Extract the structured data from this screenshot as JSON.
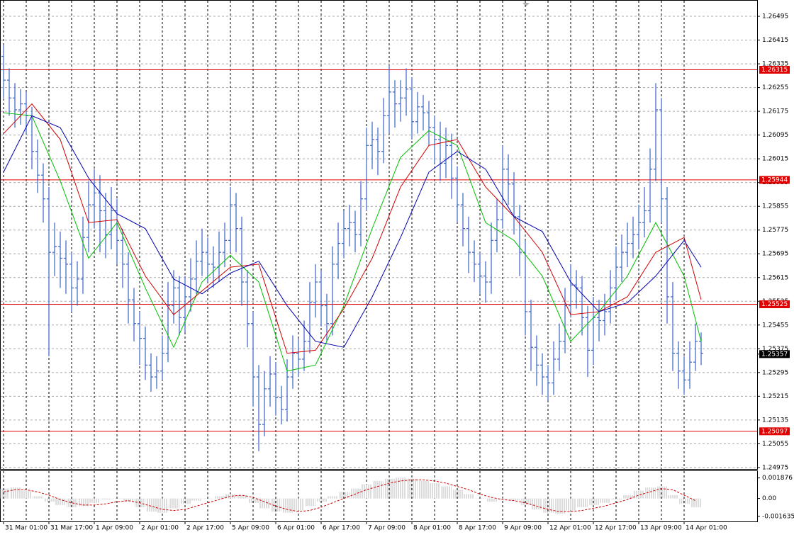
{
  "chart_data": [
    {
      "type": "ohlc",
      "categories": [
        "31 Mar 01:00",
        null,
        null,
        null,
        null,
        null,
        null,
        null,
        "31 Mar 17:00",
        null,
        null,
        null,
        null,
        null,
        null,
        null,
        "1 Apr 09:00",
        null,
        null,
        null,
        null,
        null,
        null,
        null,
        "2 Apr 01:00",
        null,
        null,
        null,
        null,
        null,
        null,
        null,
        "2 Apr 17:00",
        null,
        null,
        null,
        null,
        null,
        null,
        null,
        "5 Apr 09:00",
        null,
        null,
        null,
        null,
        null,
        null,
        null,
        "6 Apr 01:00",
        null,
        null,
        null,
        null,
        null,
        null,
        null,
        "6 Apr 17:00",
        null,
        null,
        null,
        null,
        null,
        null,
        null,
        "7 Apr 09:00",
        null,
        null,
        null,
        null,
        null,
        null,
        null,
        "8 Apr 01:00",
        null,
        null,
        null,
        null,
        null,
        null,
        null,
        "8 Apr 17:00",
        null,
        null,
        null,
        null,
        null,
        null,
        null,
        "9 Apr 09:00",
        null,
        null,
        null,
        null,
        null,
        null,
        null,
        "12 Apr 01:00",
        null,
        null,
        null,
        null,
        null,
        null,
        null,
        "12 Apr 17:00",
        null,
        null,
        null,
        null,
        null,
        null,
        null,
        "13 Apr 09:00",
        null,
        null,
        null,
        null,
        null,
        null,
        null,
        "14 Apr 01:00",
        null,
        null,
        null
      ],
      "open": [
        1.2636,
        1.2628,
        1.2622,
        1.2618,
        1.262,
        1.2616,
        1.2604,
        1.2596,
        1.2588,
        1.257,
        1.2572,
        1.2568,
        1.2566,
        1.2558,
        1.2561,
        1.2575,
        1.2586,
        1.259,
        1.2584,
        1.2576,
        1.2584,
        1.2574,
        1.2566,
        1.2554,
        1.2546,
        1.2541,
        1.2532,
        1.2528,
        1.253,
        1.2536,
        1.2552,
        1.2558,
        1.2548,
        1.2555,
        1.2561,
        1.2567,
        1.257,
        1.2566,
        1.2565,
        1.257,
        1.2574,
        1.2586,
        1.2578,
        1.256,
        1.2546,
        1.2528,
        1.2512,
        1.2524,
        1.2529,
        1.2521,
        1.2517,
        1.2528,
        1.2536,
        1.2534,
        1.254,
        1.2553,
        1.256,
        1.2552,
        1.2546,
        1.2566,
        1.2573,
        1.2578,
        1.258,
        1.2576,
        1.2588,
        1.2606,
        1.2608,
        1.2604,
        1.2616,
        1.2624,
        1.262,
        1.2622,
        1.2625,
        1.2614,
        1.2619,
        1.2617,
        1.2612,
        1.2608,
        1.26,
        1.2606,
        1.2595,
        1.2586,
        1.2578,
        1.257,
        1.2566,
        1.2562,
        1.256,
        1.2574,
        1.2581,
        1.2598,
        1.2593,
        1.2582,
        1.257,
        1.255,
        1.2538,
        1.2532,
        1.2528,
        1.2526,
        1.2534,
        1.254,
        1.2552,
        1.2559,
        1.2558,
        1.2548,
        1.2537,
        1.2548,
        1.2547,
        1.255,
        1.2558,
        1.2565,
        1.257,
        1.2573,
        1.2576,
        1.258,
        1.2584,
        1.2598,
        1.2618,
        1.2588,
        1.2555,
        1.2536,
        1.253,
        1.2527,
        1.2533,
        1.254
      ],
      "high": [
        1.264,
        1.2632,
        1.2627,
        1.2625,
        1.2624,
        1.2619,
        1.2608,
        1.26,
        1.2592,
        1.258,
        1.2577,
        1.2574,
        1.257,
        1.2567,
        1.2582,
        1.2594,
        1.2598,
        1.2596,
        1.259,
        1.2592,
        1.2588,
        1.2578,
        1.257,
        1.2558,
        1.255,
        1.2545,
        1.2536,
        1.2535,
        1.2542,
        1.256,
        1.2564,
        1.2562,
        1.2562,
        1.2568,
        1.2574,
        1.2578,
        1.2575,
        1.2572,
        1.2577,
        1.258,
        1.2592,
        1.259,
        1.2582,
        1.2564,
        1.255,
        1.2532,
        1.253,
        1.2535,
        1.2533,
        1.2525,
        1.2534,
        1.2542,
        1.2541,
        1.2547,
        1.256,
        1.2566,
        1.2564,
        1.2556,
        1.2572,
        1.258,
        1.2584,
        1.2586,
        1.2584,
        1.2594,
        1.2612,
        1.2614,
        1.2612,
        1.2622,
        1.2633,
        1.2628,
        1.2628,
        1.2632,
        1.2629,
        1.2624,
        1.2623,
        1.2621,
        1.2616,
        1.2614,
        1.2612,
        1.261,
        1.2599,
        1.259,
        1.2582,
        1.2574,
        1.257,
        1.2567,
        1.258,
        1.2588,
        1.2606,
        1.2603,
        1.2597,
        1.2586,
        1.2574,
        1.2554,
        1.2542,
        1.2536,
        1.2532,
        1.254,
        1.2546,
        1.2558,
        1.2566,
        1.2564,
        1.2562,
        1.2552,
        1.2555,
        1.2554,
        1.2556,
        1.2564,
        1.2572,
        1.2576,
        1.258,
        1.2582,
        1.2586,
        1.2592,
        1.2605,
        1.2627,
        1.2622,
        1.2592,
        1.256,
        1.254,
        1.2535,
        1.254,
        1.2546,
        1.2543
      ],
      "low": [
        1.2622,
        1.2616,
        1.2612,
        1.2613,
        1.261,
        1.2598,
        1.259,
        1.258,
        1.2535,
        1.2562,
        1.2558,
        1.2556,
        1.255,
        1.2552,
        1.2556,
        1.257,
        1.2578,
        1.257,
        1.2568,
        1.2571,
        1.2566,
        1.2558,
        1.2546,
        1.254,
        1.2532,
        1.2527,
        1.2523,
        1.2524,
        1.2527,
        1.2533,
        1.2546,
        1.2542,
        1.2543,
        1.255,
        1.2556,
        1.2562,
        1.256,
        1.2558,
        1.256,
        1.2565,
        1.257,
        1.257,
        1.2552,
        1.2538,
        1.2518,
        1.2503,
        1.2508,
        1.2518,
        1.2515,
        1.2512,
        1.2513,
        1.2524,
        1.2528,
        1.253,
        1.2536,
        1.2548,
        1.2545,
        1.254,
        1.2542,
        1.2561,
        1.2568,
        1.2572,
        1.257,
        1.2572,
        1.2584,
        1.2598,
        1.2596,
        1.26,
        1.261,
        1.2612,
        1.2614,
        1.2616,
        1.2608,
        1.261,
        1.2611,
        1.2606,
        1.26,
        1.2594,
        1.2595,
        1.2588,
        1.258,
        1.2572,
        1.2563,
        1.256,
        1.2556,
        1.2553,
        1.2556,
        1.257,
        1.2578,
        1.2586,
        1.2576,
        1.2562,
        1.2542,
        1.253,
        1.2525,
        1.2522,
        1.252,
        1.2522,
        1.253,
        1.2536,
        1.2548,
        1.2551,
        1.2542,
        1.2528,
        1.2532,
        1.254,
        1.2542,
        1.2546,
        1.2554,
        1.256,
        1.2565,
        1.2568,
        1.2571,
        1.2575,
        1.258,
        1.2594,
        1.258,
        1.2546,
        1.253,
        1.2524,
        1.2522,
        1.2524,
        1.253,
        1.2532
      ],
      "close": [
        1.2628,
        1.2622,
        1.2618,
        1.262,
        1.2616,
        1.2604,
        1.2596,
        1.2588,
        1.257,
        1.2572,
        1.2568,
        1.2566,
        1.2558,
        1.2561,
        1.2575,
        1.2586,
        1.259,
        1.2584,
        1.2576,
        1.2584,
        1.2574,
        1.2566,
        1.2554,
        1.2546,
        1.2541,
        1.2532,
        1.2528,
        1.253,
        1.2536,
        1.2552,
        1.2558,
        1.2548,
        1.2555,
        1.2561,
        1.2567,
        1.257,
        1.2566,
        1.2565,
        1.257,
        1.2574,
        1.2586,
        1.2578,
        1.256,
        1.2546,
        1.2528,
        1.2512,
        1.2524,
        1.2529,
        1.2521,
        1.2517,
        1.2528,
        1.2536,
        1.2534,
        1.254,
        1.2553,
        1.256,
        1.2552,
        1.2546,
        1.2566,
        1.2573,
        1.2578,
        1.258,
        1.2576,
        1.2588,
        1.2606,
        1.2608,
        1.2604,
        1.2616,
        1.2624,
        1.262,
        1.2622,
        1.2625,
        1.2614,
        1.2619,
        1.2617,
        1.2612,
        1.2608,
        1.26,
        1.2606,
        1.2595,
        1.2586,
        1.2578,
        1.257,
        1.2566,
        1.2562,
        1.256,
        1.2574,
        1.2581,
        1.2598,
        1.2593,
        1.2582,
        1.257,
        1.255,
        1.2538,
        1.2532,
        1.2528,
        1.2526,
        1.2534,
        1.254,
        1.2552,
        1.2559,
        1.2558,
        1.2548,
        1.2537,
        1.2548,
        1.2547,
        1.255,
        1.2558,
        1.2565,
        1.257,
        1.2573,
        1.2576,
        1.258,
        1.2584,
        1.2598,
        1.2618,
        1.2588,
        1.2555,
        1.2536,
        1.253,
        1.2527,
        1.2533,
        1.254,
        1.2536
      ],
      "color": "#3a62c8",
      "lines": [
        {
          "color": "#00c000",
          "x": [
            0,
            5,
            10,
            15,
            20,
            25,
            30,
            35,
            40,
            45,
            50,
            55,
            60,
            65,
            70,
            75,
            80,
            85,
            90,
            95,
            100,
            105,
            110,
            115,
            120,
            123
          ],
          "values": [
            1.2617,
            1.2616,
            1.2594,
            1.2568,
            1.258,
            1.2558,
            1.2538,
            1.256,
            1.2569,
            1.256,
            1.253,
            1.2532,
            1.2552,
            1.2578,
            1.2602,
            1.2611,
            1.2606,
            1.258,
            1.2574,
            1.2562,
            1.254,
            1.255,
            1.2562,
            1.258,
            1.2562,
            1.254
          ]
        },
        {
          "color": "#d00000",
          "x": [
            0,
            5,
            10,
            15,
            20,
            25,
            30,
            35,
            40,
            45,
            50,
            55,
            60,
            65,
            70,
            75,
            80,
            85,
            90,
            95,
            100,
            105,
            110,
            115,
            120,
            123
          ],
          "values": [
            1.261,
            1.262,
            1.2608,
            1.258,
            1.2581,
            1.2562,
            1.2549,
            1.2557,
            1.2565,
            1.2566,
            1.2536,
            1.2537,
            1.2551,
            1.2568,
            1.2592,
            1.2606,
            1.2608,
            1.2592,
            1.2582,
            1.257,
            1.2549,
            1.255,
            1.2555,
            1.257,
            1.2575,
            1.2554
          ]
        },
        {
          "color": "#0000b0",
          "x": [
            0,
            5,
            10,
            15,
            20,
            25,
            30,
            35,
            40,
            45,
            50,
            55,
            60,
            65,
            70,
            75,
            80,
            85,
            90,
            95,
            100,
            105,
            110,
            115,
            120,
            123
          ],
          "values": [
            1.2597,
            1.2616,
            1.2612,
            1.2595,
            1.2583,
            1.2578,
            1.2561,
            1.2556,
            1.2563,
            1.2567,
            1.2552,
            1.254,
            1.2538,
            1.2555,
            1.2575,
            1.2597,
            1.2604,
            1.2598,
            1.2582,
            1.2577,
            1.256,
            1.255,
            1.2553,
            1.2562,
            1.2574,
            1.2565
          ]
        }
      ],
      "ylim": [
        1.2497,
        1.2655
      ],
      "yticks": [
        1.24975,
        1.25055,
        1.25135,
        1.25215,
        1.25295,
        1.25375,
        1.25455,
        1.25535,
        1.25615,
        1.25695,
        1.25775,
        1.25855,
        1.25935,
        1.26015,
        1.26095,
        1.26175,
        1.26255,
        1.26335,
        1.26415,
        1.26495
      ],
      "grid": true,
      "levels": [
        1.26315,
        1.25944,
        1.25525,
        1.25097
      ],
      "level_color": "#e00000",
      "last_price": 1.25357
    },
    {
      "type": "oscillator",
      "x": [
        0,
        2,
        4,
        6,
        8,
        10,
        12,
        14,
        16,
        18,
        20,
        22,
        24,
        26,
        28,
        30,
        32,
        34,
        36,
        38,
        40,
        42,
        44,
        46,
        48,
        50,
        52,
        54,
        56,
        58,
        60,
        62,
        64,
        66,
        68,
        70,
        72,
        74,
        76,
        78,
        80,
        82,
        84,
        86,
        88,
        90,
        92,
        94,
        96,
        98,
        100,
        102,
        104,
        106,
        108,
        110,
        112,
        114,
        116,
        118,
        120,
        122
      ],
      "series": [
        {
          "color": "#b8b8b8",
          "values": [
            0.0009,
            0.001,
            0.0007,
            0.0002,
            -0.0003,
            -0.0006,
            -0.0008,
            -0.0007,
            -0.0004,
            -0.0001,
            0,
            -0.0003,
            -0.0008,
            -0.0012,
            -0.0013,
            -0.0009,
            -0.0005,
            -0.0002,
            0,
            0.0002,
            0.0004,
            0.0003,
            -0.0004,
            -0.0009,
            -0.0012,
            -0.0013,
            -0.0011,
            -0.0007,
            -0.0003,
            0.0002,
            0.0006,
            0.0009,
            0.0013,
            0.0016,
            0.0018,
            0.0019,
            0.0018,
            0.0016,
            0.0014,
            0.0011,
            0.0008,
            0.0004,
            0,
            -0.0003,
            -0.0001,
            -0.0002,
            -0.0006,
            -0.001,
            -0.0013,
            -0.0014,
            -0.0011,
            -0.0008,
            -0.0006,
            -0.0004,
            -0.0001,
            0.0003,
            0.0007,
            0.001,
            0.0011,
            0.0003,
            -0.0005,
            -0.0008
          ]
        },
        {
          "color": "#d00000",
          "style": "dashed",
          "values": [
            0.0006,
            0.0008,
            0.0008,
            0.0006,
            0.0003,
            -0.0001,
            -0.0004,
            -0.0006,
            -0.0006,
            -0.0005,
            -0.0003,
            -0.0002,
            -0.0004,
            -0.0007,
            -0.001,
            -0.0011,
            -0.001,
            -0.0007,
            -0.0004,
            -0.0001,
            0.0002,
            0.0003,
            0.0001,
            -0.0003,
            -0.0007,
            -0.001,
            -0.0012,
            -0.0011,
            -0.0008,
            -0.0004,
            0,
            0.0004,
            0.0008,
            0.0011,
            0.0014,
            0.0016,
            0.0017,
            0.0017,
            0.0016,
            0.0014,
            0.0011,
            0.0008,
            0.0004,
            0.0001,
            -0.0001,
            -0.0002,
            -0.0004,
            -0.0007,
            -0.001,
            -0.0012,
            -0.0012,
            -0.0011,
            -0.0009,
            -0.0007,
            -0.0004,
            -0.0001,
            0.0003,
            0.0006,
            0.0009,
            0.0008,
            0.0003,
            -0.0002
          ]
        }
      ],
      "ylim": [
        -0.0021,
        0.0025
      ],
      "yticks": [
        0.001876,
        {
          "value": 0,
          "label": "0.00"
        },
        -0.001635
      ]
    }
  ]
}
